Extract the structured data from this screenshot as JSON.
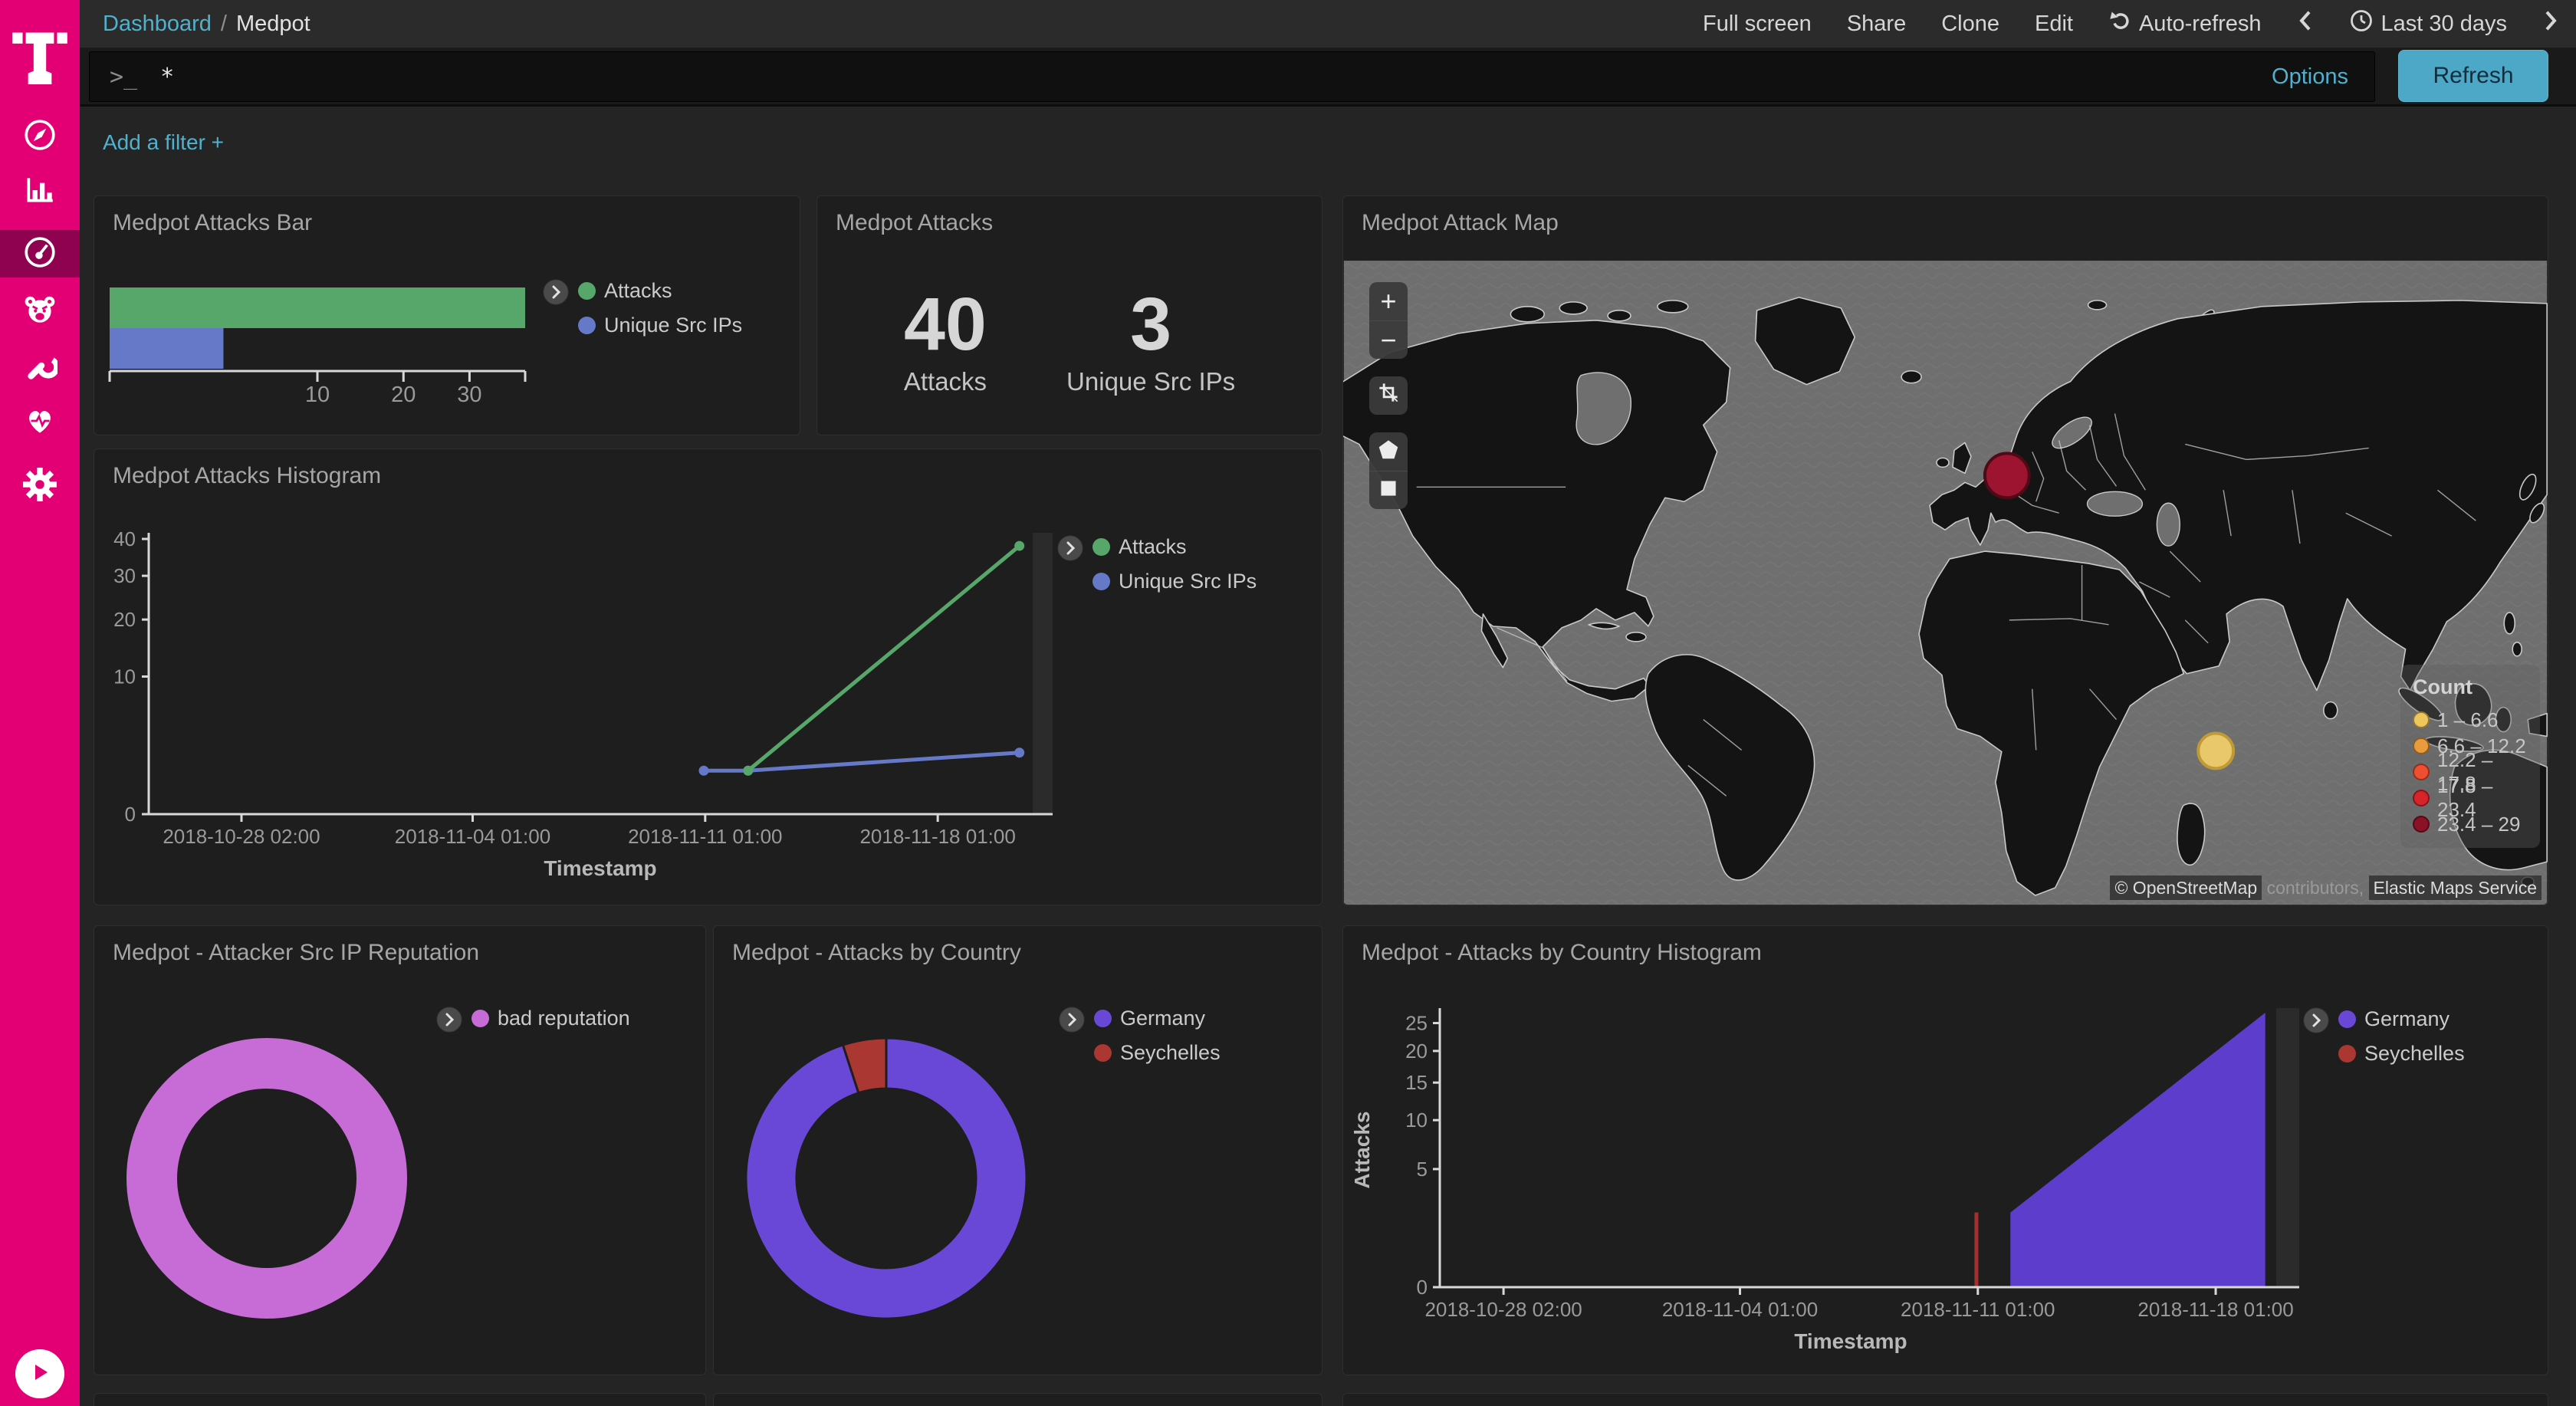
{
  "topbar": {
    "breadcrumb": {
      "section": "Dashboard",
      "separator": "/",
      "page": "Medpot"
    },
    "actions": {
      "full_screen": "Full screen",
      "share": "Share",
      "clone": "Clone",
      "edit": "Edit",
      "auto_refresh": "Auto-refresh",
      "time_range": "Last 30 days"
    }
  },
  "querybar": {
    "prompt": ">_",
    "query": "*",
    "options": "Options",
    "refresh": "Refresh"
  },
  "filterbar": {
    "add_filter": "Add a filter +"
  },
  "map": {
    "zoom_in": "+",
    "zoom_out": "−",
    "attribution": {
      "copyright": "© OpenStreetMap",
      "contributors": " contributors, ",
      "service": "Elastic Maps Service"
    }
  },
  "chart_data": [
    {
      "id": "attacks_bar",
      "type": "bar",
      "title": "Medpot Attacks Bar",
      "orientation": "horizontal",
      "categories": [
        "Attacks",
        "Unique Src IPs"
      ],
      "values": [
        40,
        3
      ],
      "colors": [
        "#57a76a",
        "#6679c8"
      ],
      "x_ticks": [
        10,
        20,
        30
      ],
      "xlim": [
        0,
        40
      ],
      "scale": "square root",
      "legend_position": "right",
      "legend": [
        {
          "label": "Attacks",
          "color": "#57a76a"
        },
        {
          "label": "Unique Src IPs",
          "color": "#6679c8"
        }
      ]
    },
    {
      "id": "attacks_metric",
      "type": "table",
      "title": "Medpot Attacks",
      "columns": [
        "value",
        "label"
      ],
      "rows": [
        [
          "40",
          "Attacks"
        ],
        [
          "3",
          "Unique Src IPs"
        ]
      ]
    },
    {
      "id": "attack_map",
      "type": "scatter",
      "title": "Medpot Attack Map",
      "points": [
        {
          "name": "Germany",
          "count_range": "23.4 – 29",
          "x": 867,
          "y": 281,
          "r": 29,
          "color": "#9c1430",
          "stroke": "#4f0a18"
        },
        {
          "name": "Seychelles",
          "count_range": "1 – 6.6",
          "x": 1140,
          "y": 641,
          "r": 23,
          "color": "#e9c86b",
          "stroke": "#bf9a36"
        }
      ],
      "legend": {
        "title": "Count",
        "ranges": [
          {
            "label": "1 – 6.6",
            "color": "#edc75c"
          },
          {
            "label": "6.6 – 12.2",
            "color": "#ea9b3c"
          },
          {
            "label": "12.2 – 17.8",
            "color": "#ef4f30"
          },
          {
            "label": "17.8 – 23.4",
            "color": "#d8232a"
          },
          {
            "label": "23.4 – 29",
            "color": "#8b1126"
          }
        ]
      }
    },
    {
      "id": "attacks_histogram",
      "type": "line",
      "title": "Medpot Attacks Histogram",
      "xlabel": "Timestamp",
      "x_ticks": [
        "2018-10-28 02:00",
        "2018-11-04 01:00",
        "2018-11-11 01:00",
        "2018-11-18 01:00"
      ],
      "x_domain": [
        "2018-10-25 07:00",
        "2018-11-21 12:00"
      ],
      "y_ticks": [
        0,
        10,
        20,
        30,
        40
      ],
      "ylim": [
        0,
        40
      ],
      "y_scale": "square root",
      "series": [
        {
          "name": "Unique Src IPs",
          "color": "#6679c8",
          "points": [
            [
              "2018-11-11 00:00",
              1
            ],
            [
              "2018-11-12 08:00",
              1
            ],
            [
              "2018-11-20 12:00",
              2
            ]
          ]
        },
        {
          "name": "Attacks",
          "color": "#57a76a",
          "points": [
            [
              "2018-11-12 08:00",
              1
            ],
            [
              "2018-11-20 12:00",
              38
            ]
          ]
        }
      ],
      "legend": [
        {
          "label": "Attacks",
          "color": "#57a76a"
        },
        {
          "label": "Unique Src IPs",
          "color": "#6679c8"
        }
      ]
    },
    {
      "id": "reputation_pie",
      "type": "pie",
      "title": "Medpot - Attacker Src IP Reputation",
      "donut": true,
      "slices": [
        {
          "label": "bad reputation",
          "value": 40,
          "color": "#c76bd6"
        }
      ],
      "legend": [
        {
          "label": "bad reputation",
          "color": "#c76bd6"
        }
      ]
    },
    {
      "id": "country_pie",
      "type": "pie",
      "title": "Medpot - Attacks by Country",
      "donut": true,
      "slices": [
        {
          "label": "Germany",
          "value": 38,
          "color": "#6a48d7"
        },
        {
          "label": "Seychelles",
          "value": 2,
          "color": "#aa3732"
        }
      ],
      "legend": [
        {
          "label": "Germany",
          "color": "#6a48d7"
        },
        {
          "label": "Seychelles",
          "color": "#aa3732"
        }
      ]
    },
    {
      "id": "country_histogram",
      "type": "area",
      "title": "Medpot - Attacks by Country Histogram",
      "xlabel": "Timestamp",
      "ylabel": "Attacks",
      "x_ticks": [
        "2018-10-28 02:00",
        "2018-11-04 01:00",
        "2018-11-11 01:00",
        "2018-11-18 01:00"
      ],
      "x_domain": [
        "2018-10-26 05:00",
        "2018-11-20 12:00"
      ],
      "y_ticks": [
        0,
        5,
        10,
        15,
        20,
        25
      ],
      "ylim": [
        0,
        27
      ],
      "y_scale": "square root",
      "series": [
        {
          "name": "Germany",
          "mark": "area",
          "color": "#5d3dcb",
          "points": [
            [
              "2018-11-12 00:00",
              2
            ],
            [
              "2018-11-19 12:00",
              27
            ]
          ]
        },
        {
          "name": "Seychelles",
          "mark": "bar",
          "color": "#a3302c",
          "points": [
            [
              "2018-11-11 00:00",
              2
            ]
          ]
        }
      ],
      "legend": [
        {
          "label": "Germany",
          "color": "#6a48d7"
        },
        {
          "label": "Seychelles",
          "color": "#aa3732"
        }
      ]
    }
  ]
}
